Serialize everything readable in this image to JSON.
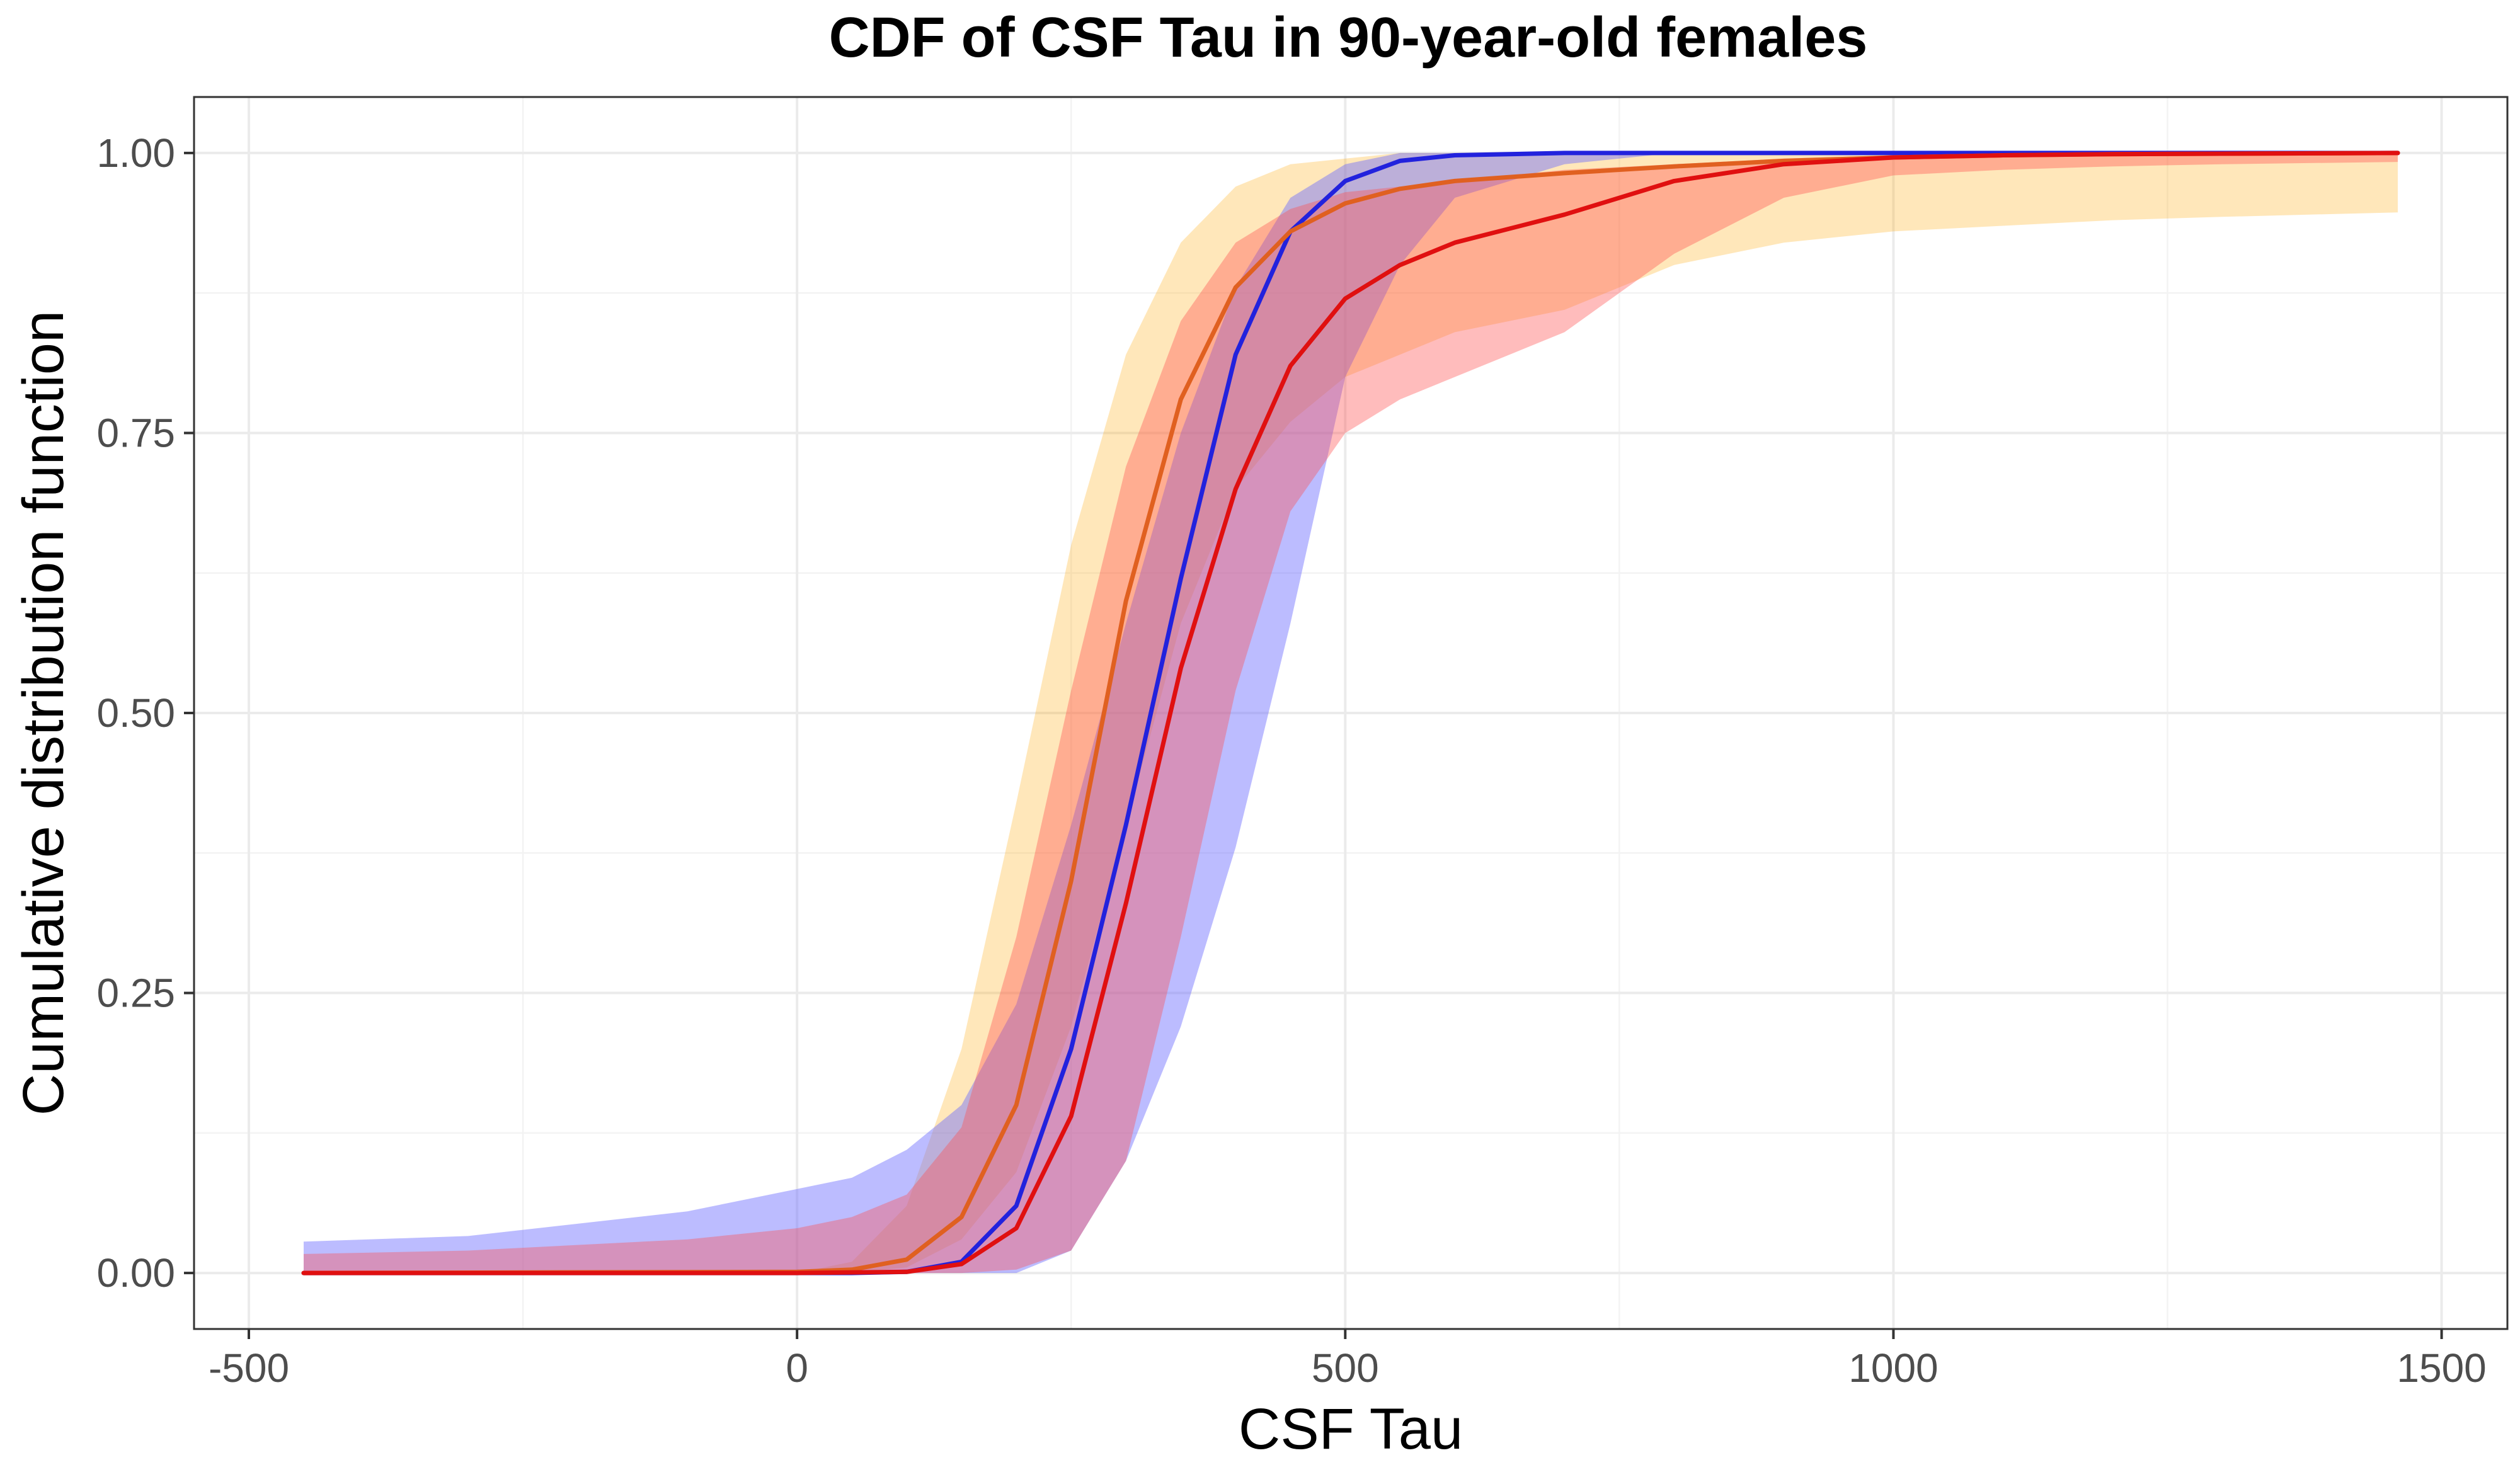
{
  "chart_data": {
    "type": "line",
    "title": "CDF of CSF Tau in 90-year-old females",
    "xlabel": "CSF Tau",
    "ylabel": "Cumulative distribution function",
    "xlim": [
      -550,
      1560
    ],
    "ylim": [
      -0.05,
      1.05
    ],
    "x_ticks": [
      -500,
      0,
      500,
      1000,
      1500
    ],
    "x_tick_labels": [
      "-500",
      "0",
      "500",
      "1000",
      "1500"
    ],
    "y_ticks": [
      0,
      0.25,
      0.5,
      0.75,
      1.0
    ],
    "y_tick_labels": [
      "0.00",
      "0.25",
      "0.50",
      "0.75",
      "1.00"
    ],
    "grid": true,
    "legend": "none",
    "bands": [
      {
        "name": "orange-band",
        "color": "#ffa500",
        "opacity": 0.27,
        "x": [
          -450,
          -300,
          -100,
          0,
          50,
          100,
          150,
          200,
          250,
          300,
          350,
          400,
          450,
          500,
          550,
          600,
          700,
          800,
          900,
          1000,
          1100,
          1200,
          1300,
          1460
        ],
        "lower": [
          0,
          0,
          0,
          0,
          0,
          0.005,
          0.03,
          0.09,
          0.22,
          0.4,
          0.58,
          0.7,
          0.76,
          0.8,
          0.82,
          0.84,
          0.86,
          0.9,
          0.92,
          0.93,
          0.935,
          0.94,
          0.943,
          0.947
        ],
        "upper": [
          0,
          0,
          0,
          0,
          0.01,
          0.06,
          0.2,
          0.42,
          0.65,
          0.82,
          0.92,
          0.97,
          0.99,
          0.995,
          1.0,
          1.0,
          1.0,
          1.0,
          1.0,
          1.0,
          1.0,
          1.0,
          1.0,
          1.0
        ]
      },
      {
        "name": "blue-band",
        "color": "#6a6aff",
        "opacity": 0.45,
        "x": [
          -450,
          -300,
          -100,
          0,
          50,
          100,
          150,
          200,
          250,
          300,
          350,
          400,
          450,
          500,
          550,
          600,
          700,
          800,
          1000,
          1200,
          1460
        ],
        "lower": [
          0,
          0,
          0,
          0,
          0,
          0,
          0,
          0,
          0.02,
          0.1,
          0.22,
          0.38,
          0.58,
          0.8,
          0.9,
          0.96,
          0.99,
          1.0,
          1.0,
          1.0,
          1.0
        ],
        "upper": [
          0.028,
          0.033,
          0.055,
          0.075,
          0.085,
          0.11,
          0.15,
          0.24,
          0.4,
          0.58,
          0.75,
          0.88,
          0.96,
          0.99,
          1.0,
          1.0,
          1.0,
          1.0,
          1.0,
          1.0,
          1.0
        ]
      },
      {
        "name": "red-band",
        "color": "#ff5050",
        "opacity": 0.38,
        "x": [
          -450,
          -300,
          -100,
          0,
          50,
          100,
          150,
          200,
          250,
          300,
          350,
          400,
          450,
          500,
          550,
          600,
          700,
          800,
          900,
          1000,
          1100,
          1200,
          1300,
          1460
        ],
        "lower": [
          0,
          0,
          0,
          0,
          0,
          0,
          0,
          0.003,
          0.02,
          0.1,
          0.3,
          0.52,
          0.68,
          0.75,
          0.78,
          0.8,
          0.84,
          0.91,
          0.96,
          0.98,
          0.985,
          0.988,
          0.99,
          0.992
        ],
        "upper": [
          0.017,
          0.02,
          0.03,
          0.04,
          0.05,
          0.07,
          0.13,
          0.3,
          0.52,
          0.72,
          0.85,
          0.92,
          0.95,
          0.965,
          0.97,
          0.975,
          0.985,
          0.99,
          0.995,
          0.998,
          1.0,
          1.0,
          1.0,
          1.0
        ]
      }
    ],
    "series": [
      {
        "name": "blue-line",
        "color": "#2222dd",
        "x": [
          -450,
          0,
          50,
          100,
          150,
          200,
          250,
          300,
          350,
          400,
          450,
          500,
          550,
          600,
          700,
          1000,
          1460
        ],
        "y": [
          0,
          0,
          0.0,
          0.001,
          0.01,
          0.06,
          0.2,
          0.4,
          0.62,
          0.82,
          0.93,
          0.975,
          0.993,
          0.998,
          1.0,
          1.0,
          1.0
        ]
      },
      {
        "name": "orange-line",
        "color": "#e06020",
        "x": [
          -450,
          0,
          50,
          100,
          150,
          200,
          250,
          300,
          350,
          400,
          450,
          500,
          550,
          600,
          700,
          800,
          900,
          1000,
          1100,
          1200,
          1460
        ],
        "y": [
          0,
          0.001,
          0.003,
          0.012,
          0.05,
          0.15,
          0.35,
          0.6,
          0.78,
          0.88,
          0.93,
          0.955,
          0.968,
          0.975,
          0.982,
          0.988,
          0.993,
          0.996,
          0.998,
          0.999,
          1.0
        ]
      },
      {
        "name": "red-line",
        "color": "#e01010",
        "x": [
          -450,
          0,
          100,
          150,
          200,
          250,
          300,
          350,
          400,
          450,
          500,
          550,
          600,
          700,
          800,
          900,
          1000,
          1100,
          1200,
          1460
        ],
        "y": [
          0,
          0,
          0.001,
          0.008,
          0.04,
          0.14,
          0.33,
          0.54,
          0.7,
          0.81,
          0.87,
          0.9,
          0.92,
          0.945,
          0.975,
          0.99,
          0.996,
          0.998,
          0.999,
          1.0
        ]
      }
    ]
  }
}
